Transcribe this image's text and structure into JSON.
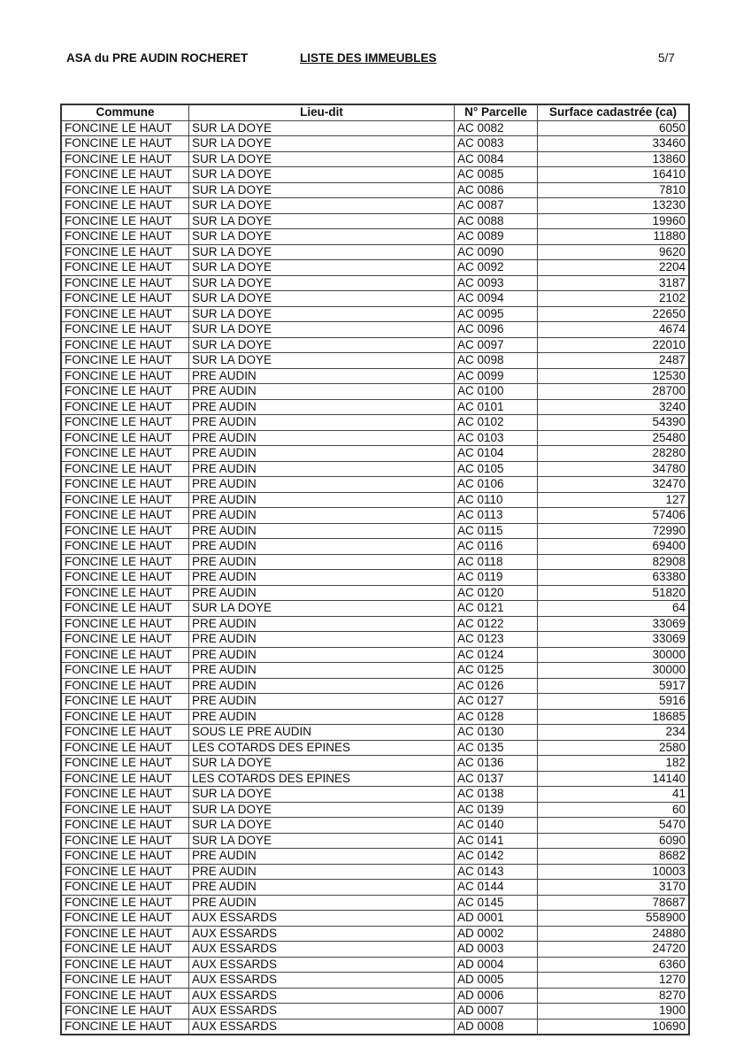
{
  "header": {
    "organization": "ASA du PRE AUDIN ROCHERET",
    "title": "LISTE DES IMMEUBLES",
    "page": "5/7"
  },
  "table": {
    "columns": [
      "Commune",
      "Lieu-dit",
      "N° Parcelle",
      "Surface cadastrée (ca)"
    ],
    "rows": [
      [
        "FONCINE LE HAUT",
        "SUR LA DOYE",
        "AC 0082",
        "6050"
      ],
      [
        "FONCINE LE HAUT",
        "SUR LA DOYE",
        "AC 0083",
        "33460"
      ],
      [
        "FONCINE LE HAUT",
        "SUR LA DOYE",
        "AC 0084",
        "13860"
      ],
      [
        "FONCINE LE HAUT",
        "SUR LA DOYE",
        "AC 0085",
        "16410"
      ],
      [
        "FONCINE LE HAUT",
        "SUR LA DOYE",
        "AC 0086",
        "7810"
      ],
      [
        "FONCINE LE HAUT",
        "SUR LA DOYE",
        "AC 0087",
        "13230"
      ],
      [
        "FONCINE LE HAUT",
        "SUR LA DOYE",
        "AC 0088",
        "19960"
      ],
      [
        "FONCINE LE HAUT",
        "SUR LA DOYE",
        "AC 0089",
        "11880"
      ],
      [
        "FONCINE LE HAUT",
        "SUR LA DOYE",
        "AC 0090",
        "9620"
      ],
      [
        "FONCINE LE HAUT",
        "SUR LA DOYE",
        "AC 0092",
        "2204"
      ],
      [
        "FONCINE LE HAUT",
        "SUR LA DOYE",
        "AC 0093",
        "3187"
      ],
      [
        "FONCINE LE HAUT",
        "SUR LA DOYE",
        "AC 0094",
        "2102"
      ],
      [
        "FONCINE LE HAUT",
        "SUR LA DOYE",
        "AC 0095",
        "22650"
      ],
      [
        "FONCINE LE HAUT",
        "SUR LA DOYE",
        "AC 0096",
        "4674"
      ],
      [
        "FONCINE LE HAUT",
        "SUR LA DOYE",
        "AC 0097",
        "22010"
      ],
      [
        "FONCINE LE HAUT",
        "SUR LA DOYE",
        "AC 0098",
        "2487"
      ],
      [
        "FONCINE LE HAUT",
        "PRE AUDIN",
        "AC 0099",
        "12530"
      ],
      [
        "FONCINE LE HAUT",
        "PRE AUDIN",
        "AC 0100",
        "28700"
      ],
      [
        "FONCINE LE HAUT",
        "PRE AUDIN",
        "AC 0101",
        "3240"
      ],
      [
        "FONCINE LE HAUT",
        "PRE AUDIN",
        "AC 0102",
        "54390"
      ],
      [
        "FONCINE LE HAUT",
        "PRE AUDIN",
        "AC 0103",
        "25480"
      ],
      [
        "FONCINE LE HAUT",
        "PRE AUDIN",
        "AC 0104",
        "28280"
      ],
      [
        "FONCINE LE HAUT",
        "PRE AUDIN",
        "AC 0105",
        "34780"
      ],
      [
        "FONCINE LE HAUT",
        "PRE AUDIN",
        "AC 0106",
        "32470"
      ],
      [
        "FONCINE LE HAUT",
        "PRE AUDIN",
        "AC 0110",
        "127"
      ],
      [
        "FONCINE LE HAUT",
        "PRE AUDIN",
        "AC 0113",
        "57406"
      ],
      [
        "FONCINE LE HAUT",
        "PRE AUDIN",
        "AC 0115",
        "72990"
      ],
      [
        "FONCINE LE HAUT",
        "PRE AUDIN",
        "AC 0116",
        "69400"
      ],
      [
        "FONCINE LE HAUT",
        "PRE AUDIN",
        "AC 0118",
        "82908"
      ],
      [
        "FONCINE LE HAUT",
        "PRE AUDIN",
        "AC 0119",
        "63380"
      ],
      [
        "FONCINE LE HAUT",
        "PRE AUDIN",
        "AC 0120",
        "51820"
      ],
      [
        "FONCINE LE HAUT",
        "SUR LA DOYE",
        "AC 0121",
        "64"
      ],
      [
        "FONCINE LE HAUT",
        "PRE AUDIN",
        "AC 0122",
        "33069"
      ],
      [
        "FONCINE LE HAUT",
        "PRE AUDIN",
        "AC 0123",
        "33069"
      ],
      [
        "FONCINE LE HAUT",
        "PRE AUDIN",
        "AC 0124",
        "30000"
      ],
      [
        "FONCINE LE HAUT",
        "PRE AUDIN",
        "AC 0125",
        "30000"
      ],
      [
        "FONCINE LE HAUT",
        "PRE AUDIN",
        "AC 0126",
        "5917"
      ],
      [
        "FONCINE LE HAUT",
        "PRE AUDIN",
        "AC 0127",
        "5916"
      ],
      [
        "FONCINE LE HAUT",
        "PRE AUDIN",
        "AC 0128",
        "18685"
      ],
      [
        "FONCINE LE HAUT",
        "SOUS LE PRE AUDIN",
        "AC 0130",
        "234"
      ],
      [
        "FONCINE LE HAUT",
        "LES COTARDS DES EPINES",
        "AC 0135",
        "2580"
      ],
      [
        "FONCINE LE HAUT",
        "SUR LA DOYE",
        "AC 0136",
        "182"
      ],
      [
        "FONCINE LE HAUT",
        "LES COTARDS DES EPINES",
        "AC 0137",
        "14140"
      ],
      [
        "FONCINE LE HAUT",
        "SUR LA DOYE",
        "AC 0138",
        "41"
      ],
      [
        "FONCINE LE HAUT",
        "SUR LA DOYE",
        "AC 0139",
        "60"
      ],
      [
        "FONCINE LE HAUT",
        "SUR LA DOYE",
        "AC 0140",
        "5470"
      ],
      [
        "FONCINE LE HAUT",
        "SUR LA DOYE",
        "AC 0141",
        "6090"
      ],
      [
        "FONCINE LE HAUT",
        "PRE AUDIN",
        "AC 0142",
        "8682"
      ],
      [
        "FONCINE LE HAUT",
        "PRE AUDIN",
        "AC 0143",
        "10003"
      ],
      [
        "FONCINE LE HAUT",
        "PRE AUDIN",
        "AC 0144",
        "3170"
      ],
      [
        "FONCINE LE HAUT",
        "PRE AUDIN",
        "AC 0145",
        "78687"
      ],
      [
        "FONCINE LE HAUT",
        "AUX ESSARDS",
        "AD 0001",
        "558900"
      ],
      [
        "FONCINE LE HAUT",
        "AUX ESSARDS",
        "AD 0002",
        "24880"
      ],
      [
        "FONCINE LE HAUT",
        "AUX ESSARDS",
        "AD 0003",
        "24720"
      ],
      [
        "FONCINE LE HAUT",
        "AUX ESSARDS",
        "AD 0004",
        "6360"
      ],
      [
        "FONCINE LE HAUT",
        "AUX ESSARDS",
        "AD 0005",
        "1270"
      ],
      [
        "FONCINE LE HAUT",
        "AUX ESSARDS",
        "AD 0006",
        "8270"
      ],
      [
        "FONCINE LE HAUT",
        "AUX ESSARDS",
        "AD 0007",
        "1900"
      ],
      [
        "FONCINE LE HAUT",
        "AUX ESSARDS",
        "AD 0008",
        "10690"
      ]
    ]
  }
}
